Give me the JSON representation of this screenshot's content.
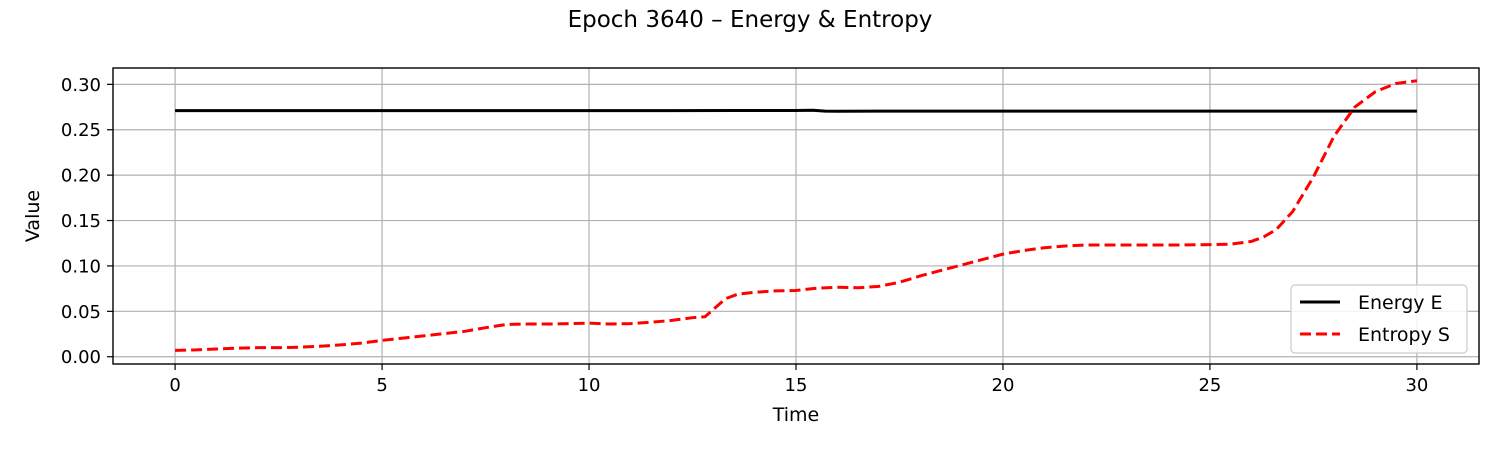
{
  "chart_data": {
    "type": "line",
    "title": "Epoch 3640 – Energy & Entropy",
    "xlabel": "Time",
    "ylabel": "Value",
    "xlim": [
      -1.5,
      31.5
    ],
    "ylim": [
      -0.008,
      0.318
    ],
    "xticks": [
      0,
      5,
      10,
      15,
      20,
      25,
      30
    ],
    "xtick_labels": [
      "0",
      "5",
      "10",
      "15",
      "20",
      "25",
      "30"
    ],
    "yticks": [
      0.0,
      0.05,
      0.1,
      0.15,
      0.2,
      0.25,
      0.3
    ],
    "ytick_labels": [
      "0.00",
      "0.05",
      "0.10",
      "0.15",
      "0.20",
      "0.25",
      "0.30"
    ],
    "grid": true,
    "legend_position": "lower-right",
    "series": [
      {
        "name": "Energy E",
        "color": "#000000",
        "style": "solid",
        "x": [
          0,
          2,
          4,
          6,
          8,
          10,
          12,
          13.5,
          15,
          15.4,
          15.7,
          16,
          17,
          18,
          20,
          22,
          24,
          26,
          28,
          30
        ],
        "y": [
          0.271,
          0.271,
          0.271,
          0.271,
          0.271,
          0.271,
          0.271,
          0.2712,
          0.2712,
          0.2715,
          0.2705,
          0.2703,
          0.2705,
          0.2705,
          0.2705,
          0.2705,
          0.2705,
          0.2705,
          0.2705,
          0.2705
        ]
      },
      {
        "name": "Entropy S",
        "color": "#ff0000",
        "style": "dashed",
        "x": [
          0,
          0.5,
          1,
          1.5,
          2,
          2.5,
          3,
          3.5,
          4,
          4.5,
          5,
          5.5,
          6,
          6.5,
          7,
          7.5,
          8,
          8.5,
          9,
          9.5,
          10,
          10.5,
          11,
          11.5,
          12,
          12.5,
          12.8,
          13,
          13.3,
          13.6,
          14,
          14.5,
          15,
          15.5,
          16,
          16.5,
          17,
          17.5,
          18,
          18.5,
          19,
          19.5,
          20,
          20.5,
          21,
          21.5,
          22,
          22.5,
          23,
          23.5,
          24,
          24.5,
          25,
          25.5,
          26,
          26.3,
          26.6,
          27,
          27.5,
          28,
          28.5,
          29,
          29.5,
          30
        ],
        "y": [
          0.007,
          0.0075,
          0.0085,
          0.0095,
          0.01,
          0.01,
          0.0105,
          0.0115,
          0.013,
          0.015,
          0.018,
          0.0205,
          0.023,
          0.0255,
          0.028,
          0.032,
          0.0355,
          0.036,
          0.036,
          0.0365,
          0.037,
          0.036,
          0.0365,
          0.038,
          0.04,
          0.043,
          0.044,
          0.052,
          0.064,
          0.069,
          0.071,
          0.0725,
          0.073,
          0.0755,
          0.0765,
          0.076,
          0.0775,
          0.082,
          0.089,
          0.095,
          0.101,
          0.107,
          0.113,
          0.117,
          0.12,
          0.122,
          0.123,
          0.123,
          0.123,
          0.123,
          0.123,
          0.1232,
          0.1235,
          0.124,
          0.127,
          0.132,
          0.14,
          0.16,
          0.198,
          0.243,
          0.275,
          0.292,
          0.301,
          0.304
        ]
      }
    ]
  }
}
